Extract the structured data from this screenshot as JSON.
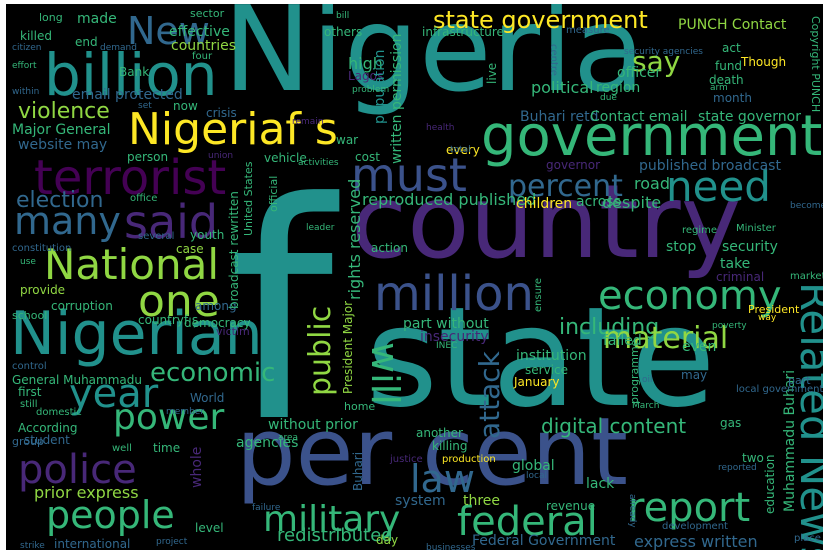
{
  "palette": {
    "background": "#000000",
    "teal": "#21918c",
    "green": "#35b779",
    "lime": "#90d743",
    "yellow": "#fde725",
    "purple": "#440154",
    "violet": "#482878",
    "blue": "#3b528b",
    "steel": "#31688e",
    "cyan": "#26828e",
    "dark": "#2a2a4a"
  },
  "words": [
    {
      "text": "Nigeria",
      "color": "teal"
    },
    {
      "text": "f",
      "color": "teal"
    },
    {
      "text": "country",
      "color": "violet"
    },
    {
      "text": "state",
      "color": "teal"
    },
    {
      "text": "per cent",
      "color": "blue"
    },
    {
      "text": "government",
      "color": "green"
    },
    {
      "text": "Nigerian",
      "color": "teal"
    },
    {
      "text": "billion",
      "color": "teal"
    },
    {
      "text": "Nigeriaf s",
      "color": "yellow"
    },
    {
      "text": "New",
      "color": "steel"
    },
    {
      "text": "terrorist",
      "color": "purple"
    },
    {
      "text": "said",
      "color": "violet"
    },
    {
      "text": "must",
      "color": "blue"
    },
    {
      "text": "need",
      "color": "teal"
    },
    {
      "text": "percent",
      "color": "steel"
    },
    {
      "text": "state government",
      "color": "yellow"
    },
    {
      "text": "say",
      "color": "lime"
    },
    {
      "text": "many",
      "color": "steel"
    },
    {
      "text": "election",
      "color": "steel"
    },
    {
      "text": "National",
      "color": "lime"
    },
    {
      "text": "one",
      "color": "lime"
    },
    {
      "text": "million",
      "color": "blue"
    },
    {
      "text": "economy",
      "color": "green"
    },
    {
      "text": "year",
      "color": "teal"
    },
    {
      "text": "police",
      "color": "violet"
    },
    {
      "text": "power",
      "color": "green"
    },
    {
      "text": "people",
      "color": "green"
    },
    {
      "text": "military",
      "color": "green"
    },
    {
      "text": "federal",
      "color": "green"
    },
    {
      "text": "report",
      "color": "green"
    },
    {
      "text": "law",
      "color": "steel"
    },
    {
      "text": "will",
      "color": "green"
    },
    {
      "text": "public",
      "color": "lime"
    },
    {
      "text": "Related News",
      "color": "teal"
    },
    {
      "text": "violence",
      "color": "lime"
    },
    {
      "text": "including",
      "color": "green"
    },
    {
      "text": "material",
      "color": "lime"
    },
    {
      "text": "economic",
      "color": "green"
    },
    {
      "text": "attack",
      "color": "steel"
    },
    {
      "text": "digital content",
      "color": "green"
    },
    {
      "text": "redistributed",
      "color": "green"
    },
    {
      "text": "Federal Government",
      "color": "steel"
    },
    {
      "text": "express written",
      "color": "steel"
    },
    {
      "text": "prior express",
      "color": "lime"
    },
    {
      "text": "reproduced published",
      "color": "green"
    },
    {
      "text": "rights reserved",
      "color": "green"
    },
    {
      "text": "Muhammadu Buhari",
      "color": "green"
    },
    {
      "text": "email protected",
      "color": "steel"
    },
    {
      "text": "Major General",
      "color": "green"
    },
    {
      "text": "website may",
      "color": "steel"
    },
    {
      "text": "countries",
      "color": "lime"
    },
    {
      "text": "effective",
      "color": "green"
    },
    {
      "text": "made",
      "color": "green"
    },
    {
      "text": "PUNCH Contact",
      "color": "lime"
    },
    {
      "text": "Buhari retd",
      "color": "steel"
    },
    {
      "text": "Contact email",
      "color": "green"
    },
    {
      "text": "state governor",
      "color": "green"
    },
    {
      "text": "political",
      "color": "green"
    },
    {
      "text": "region",
      "color": "green"
    },
    {
      "text": "officer",
      "color": "green"
    },
    {
      "text": "high",
      "color": "green"
    },
    {
      "text": "Lagos",
      "color": "violet"
    },
    {
      "text": "infrastructure",
      "color": "green"
    },
    {
      "text": "written permission",
      "color": "green"
    },
    {
      "text": "population",
      "color": "teal"
    },
    {
      "text": "published broadcast",
      "color": "steel"
    },
    {
      "text": "road",
      "color": "green"
    },
    {
      "text": "despite",
      "color": "green"
    },
    {
      "text": "children",
      "color": "yellow"
    },
    {
      "text": "across",
      "color": "green"
    },
    {
      "text": "take",
      "color": "green"
    },
    {
      "text": "security",
      "color": "green"
    },
    {
      "text": "stop",
      "color": "green"
    },
    {
      "text": "criminal",
      "color": "violet"
    },
    {
      "text": "part without",
      "color": "green"
    },
    {
      "text": "insecurity",
      "color": "violet"
    },
    {
      "text": "institution",
      "color": "green"
    },
    {
      "text": "failed",
      "color": "green"
    },
    {
      "text": "even",
      "color": "green"
    },
    {
      "text": "January",
      "color": "yellow"
    },
    {
      "text": "service",
      "color": "green"
    },
    {
      "text": "may",
      "color": "steel"
    },
    {
      "text": "global",
      "color": "green"
    },
    {
      "text": "lack",
      "color": "green"
    },
    {
      "text": "revenue",
      "color": "green"
    },
    {
      "text": "two",
      "color": "green"
    },
    {
      "text": "education",
      "color": "green"
    },
    {
      "text": "without prior",
      "color": "green"
    },
    {
      "text": "agencies",
      "color": "green"
    },
    {
      "text": "another",
      "color": "green"
    },
    {
      "text": "killing",
      "color": "green"
    },
    {
      "text": "system",
      "color": "steel"
    },
    {
      "text": "three",
      "color": "lime"
    },
    {
      "text": "whole",
      "color": "violet"
    },
    {
      "text": "World",
      "color": "steel"
    },
    {
      "text": "time",
      "color": "green"
    },
    {
      "text": "According",
      "color": "green"
    },
    {
      "text": "student",
      "color": "steel"
    },
    {
      "text": "General Muhammadu",
      "color": "green"
    },
    {
      "text": "first",
      "color": "green"
    },
    {
      "text": "countryf s",
      "color": "green"
    },
    {
      "text": "democracy",
      "color": "green"
    },
    {
      "text": "among",
      "color": "steel"
    },
    {
      "text": "corruption",
      "color": "green"
    },
    {
      "text": "provide",
      "color": "lime"
    },
    {
      "text": "case",
      "color": "lime"
    },
    {
      "text": "action",
      "color": "green"
    },
    {
      "text": "person",
      "color": "green"
    },
    {
      "text": "cost",
      "color": "green"
    },
    {
      "text": "now",
      "color": "green"
    },
    {
      "text": "crisis",
      "color": "steel"
    },
    {
      "text": "war",
      "color": "green"
    },
    {
      "text": "others",
      "color": "green"
    },
    {
      "text": "Though",
      "color": "yellow"
    },
    {
      "text": "fund",
      "color": "green"
    },
    {
      "text": "death",
      "color": "green"
    },
    {
      "text": "month",
      "color": "steel"
    },
    {
      "text": "act",
      "color": "green"
    },
    {
      "text": "live",
      "color": "green"
    },
    {
      "text": "President Major",
      "color": "lime"
    },
    {
      "text": "international",
      "color": "steel"
    },
    {
      "text": "level",
      "color": "green"
    },
    {
      "text": "day",
      "color": "lime"
    },
    {
      "text": "long",
      "color": "green"
    },
    {
      "text": "killed",
      "color": "green"
    },
    {
      "text": "end",
      "color": "green"
    },
    {
      "text": "Bank",
      "color": "green"
    },
    {
      "text": "sector",
      "color": "green"
    },
    {
      "text": "United States",
      "color": "green"
    },
    {
      "text": "official",
      "color": "green"
    },
    {
      "text": "vehicle",
      "color": "green"
    },
    {
      "text": "broadcast rewritten",
      "color": "green"
    },
    {
      "text": "Copyright PUNCH",
      "color": "green"
    },
    {
      "text": "President",
      "color": "yellow"
    },
    {
      "text": "local government",
      "color": "steel"
    },
    {
      "text": "Buhari",
      "color": "steel"
    },
    {
      "text": "every",
      "color": "yellow"
    },
    {
      "text": "programme",
      "color": "green"
    },
    {
      "text": "gas",
      "color": "green"
    },
    {
      "text": "home",
      "color": "green"
    },
    {
      "text": "school",
      "color": "green"
    },
    {
      "text": "victim",
      "color": "violet"
    },
    {
      "text": "youth",
      "color": "green"
    },
    {
      "text": "several",
      "color": "steel"
    },
    {
      "text": "constitution",
      "color": "steel"
    },
    {
      "text": "control",
      "color": "steel"
    },
    {
      "text": "group",
      "color": "steel"
    },
    {
      "text": "still",
      "color": "green"
    },
    {
      "text": "domestic",
      "color": "green"
    },
    {
      "text": "office",
      "color": "green"
    },
    {
      "text": "Minister",
      "color": "green"
    },
    {
      "text": "regime",
      "color": "green"
    },
    {
      "text": "market",
      "color": "green"
    },
    {
      "text": "become",
      "color": "steel"
    },
    {
      "text": "development",
      "color": "steel"
    },
    {
      "text": "place",
      "color": "steel"
    },
    {
      "text": "March",
      "color": "green"
    },
    {
      "text": "INEC",
      "color": "green"
    },
    {
      "text": "production",
      "color": "yellow"
    },
    {
      "text": "justice",
      "color": "violet"
    },
    {
      "text": "well",
      "color": "green"
    },
    {
      "text": "area",
      "color": "green"
    },
    {
      "text": "leader",
      "color": "green"
    },
    {
      "text": "activities",
      "color": "green"
    },
    {
      "text": "union",
      "color": "violet"
    },
    {
      "text": "governor",
      "color": "violet"
    },
    {
      "text": "total",
      "color": "steel"
    },
    {
      "text": "health",
      "color": "violet"
    },
    {
      "text": "centre",
      "color": "steel"
    },
    {
      "text": "due",
      "color": "green"
    },
    {
      "text": "security agencies",
      "color": "steel"
    },
    {
      "text": "measure",
      "color": "steel"
    },
    {
      "text": "four",
      "color": "green"
    },
    {
      "text": "citizen",
      "color": "steel"
    },
    {
      "text": "effort",
      "color": "green"
    },
    {
      "text": "within",
      "color": "steel"
    },
    {
      "text": "demand",
      "color": "steel"
    },
    {
      "text": "problem",
      "color": "green"
    },
    {
      "text": "remain",
      "color": "violet"
    },
    {
      "text": "bill",
      "color": "green"
    },
    {
      "text": "set",
      "color": "steel"
    },
    {
      "text": "use",
      "color": "green"
    },
    {
      "text": "reported",
      "color": "steel"
    },
    {
      "text": "oil",
      "color": "steel"
    },
    {
      "text": "businesses",
      "color": "steel"
    },
    {
      "text": "project",
      "color": "steel"
    },
    {
      "text": "strike",
      "color": "steel"
    },
    {
      "text": "failure",
      "color": "steel"
    },
    {
      "text": "local",
      "color": "steel"
    },
    {
      "text": "arm",
      "color": "green"
    },
    {
      "text": "way",
      "color": "yellow"
    },
    {
      "text": "poverty",
      "color": "green"
    },
    {
      "text": "part",
      "color": "steel"
    },
    {
      "text": "already",
      "color": "steel"
    },
    {
      "text": "member",
      "color": "steel"
    },
    {
      "text": "ensure",
      "color": "green"
    }
  ]
}
